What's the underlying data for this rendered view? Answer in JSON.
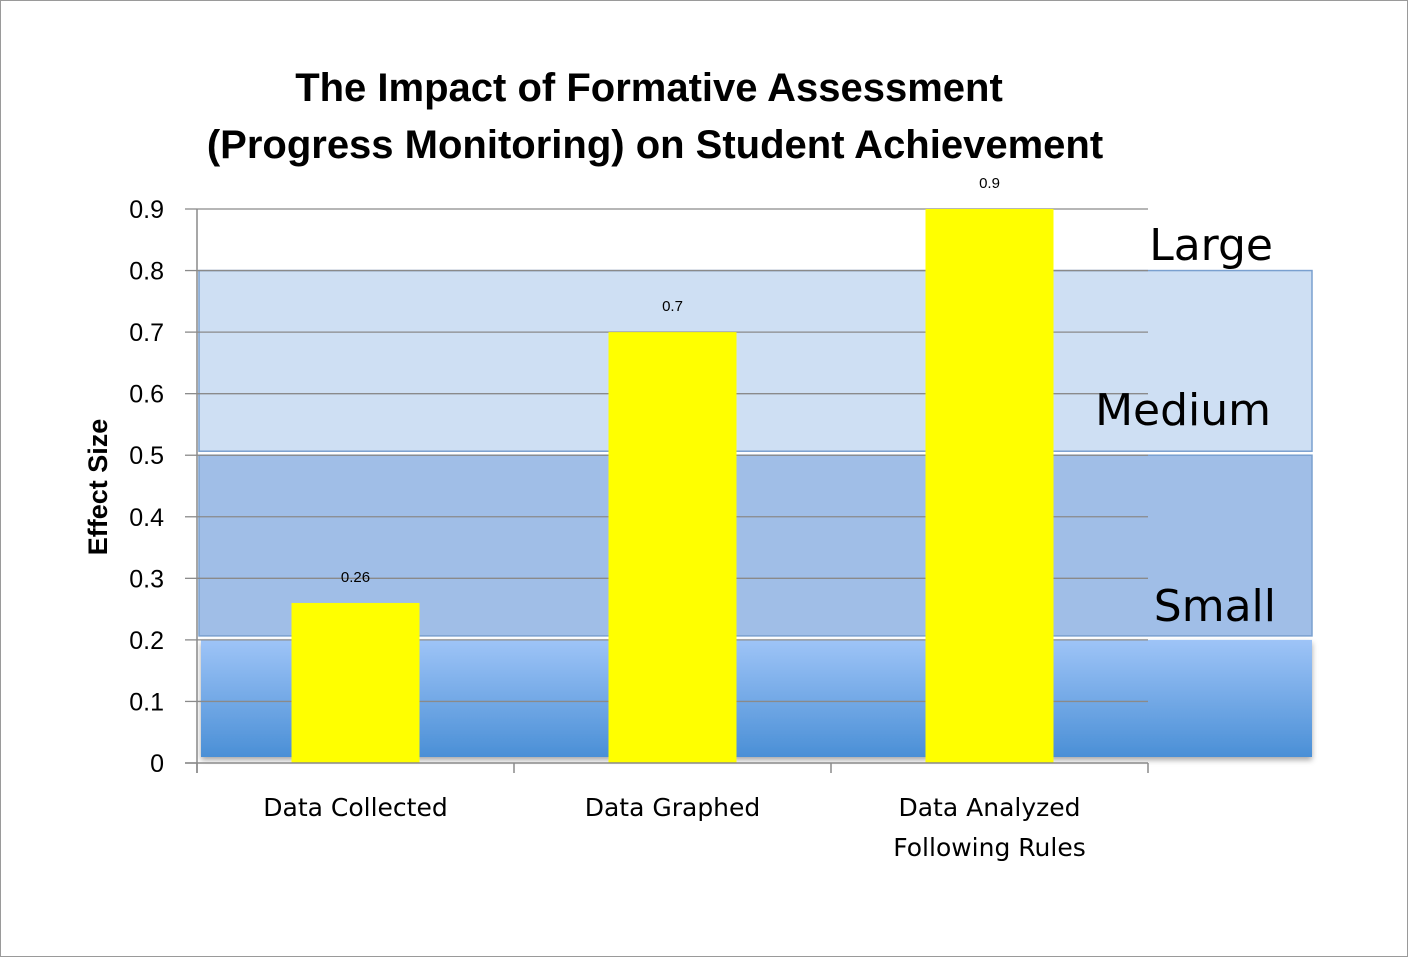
{
  "chart_data": {
    "type": "bar",
    "title": [
      "The Impact of Formative Assessment",
      "(Progress Monitoring) on Student Achievement"
    ],
    "ylabel": "Effect Size",
    "xlabel": "",
    "categories": [
      [
        "Data Collected"
      ],
      [
        "Data Graphed"
      ],
      [
        "Data Analyzed",
        "Following Rules"
      ]
    ],
    "values": [
      0.26,
      0.7,
      0.9
    ],
    "data_labels": [
      "0.26",
      "0.7",
      "0.9"
    ],
    "ylim": [
      0,
      0.9
    ],
    "yticks": [
      "0",
      "0.1",
      "0.2",
      "0.3",
      "0.4",
      "0.5",
      "0.6",
      "0.7",
      "0.8",
      "0.9"
    ],
    "grid": true,
    "bar_color": "#ffff00",
    "bands": [
      {
        "label": "Small",
        "from": 0.2,
        "to": 0.5,
        "color": "#8fb3e3"
      },
      {
        "label": "Medium",
        "from": 0.5,
        "to": 0.8,
        "color": "#c6d9f1"
      },
      {
        "label": "Large",
        "from": 0.8,
        "to": 0.9,
        "color": "#ffffff"
      }
    ],
    "base_band": {
      "from": 0.0,
      "to": 0.2,
      "color_top": "#9ec4f7",
      "color_bottom": "#4a8fd6"
    }
  }
}
